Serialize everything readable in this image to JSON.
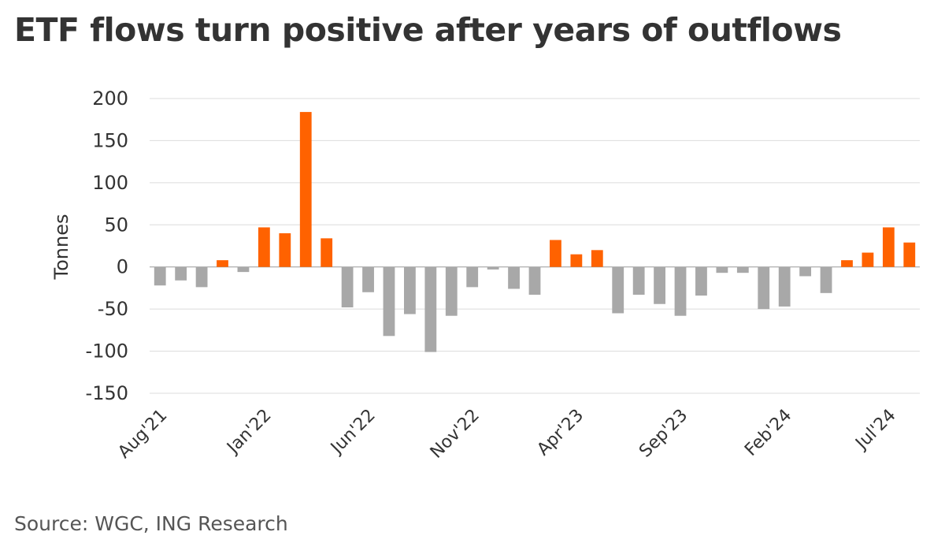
{
  "title": "ETF flows turn positive after years of outflows",
  "source": "Source: WGC, ING Research",
  "chart_data": {
    "type": "bar",
    "ylabel": "Tonnes",
    "ylim": [
      -150,
      200
    ],
    "yticks": [
      200,
      150,
      100,
      50,
      0,
      -50,
      -100,
      -150
    ],
    "grid": true,
    "colors": {
      "positive": "#FF6200",
      "negative": "#A8A8A8"
    },
    "categories": [
      "Aug'21",
      "Sep'21",
      "Oct'21",
      "Nov'21",
      "Dec'21",
      "Jan'22",
      "Feb'22",
      "Mar'22",
      "Apr'22",
      "May'22",
      "Jun'22",
      "Jul'22",
      "Aug'22",
      "Sep'22",
      "Oct'22",
      "Nov'22",
      "Dec'22",
      "Jan'23",
      "Feb'23",
      "Mar'23",
      "Apr'23",
      "May'23",
      "Jun'23",
      "Jul'23",
      "Aug'23",
      "Sep'23",
      "Oct'23",
      "Nov'23",
      "Dec'23",
      "Jan'24",
      "Feb'24",
      "Mar'24",
      "Apr'24",
      "May'24",
      "Jun'24",
      "Jul'24",
      "Aug'24"
    ],
    "values": [
      -22,
      -16,
      -24,
      8,
      -6,
      47,
      40,
      184,
      34,
      -48,
      -30,
      -82,
      -56,
      -101,
      -58,
      -24,
      -3,
      -26,
      -33,
      32,
      15,
      20,
      -55,
      -33,
      -44,
      -58,
      -34,
      -7,
      -7,
      -50,
      -47,
      -11,
      -31,
      8,
      17,
      47,
      29
    ],
    "xtick_labels": [
      "Aug'21",
      "Jan'22",
      "Jun'22",
      "Nov'22",
      "Apr'23",
      "Sep'23",
      "Feb'24",
      "Jul'24"
    ]
  }
}
